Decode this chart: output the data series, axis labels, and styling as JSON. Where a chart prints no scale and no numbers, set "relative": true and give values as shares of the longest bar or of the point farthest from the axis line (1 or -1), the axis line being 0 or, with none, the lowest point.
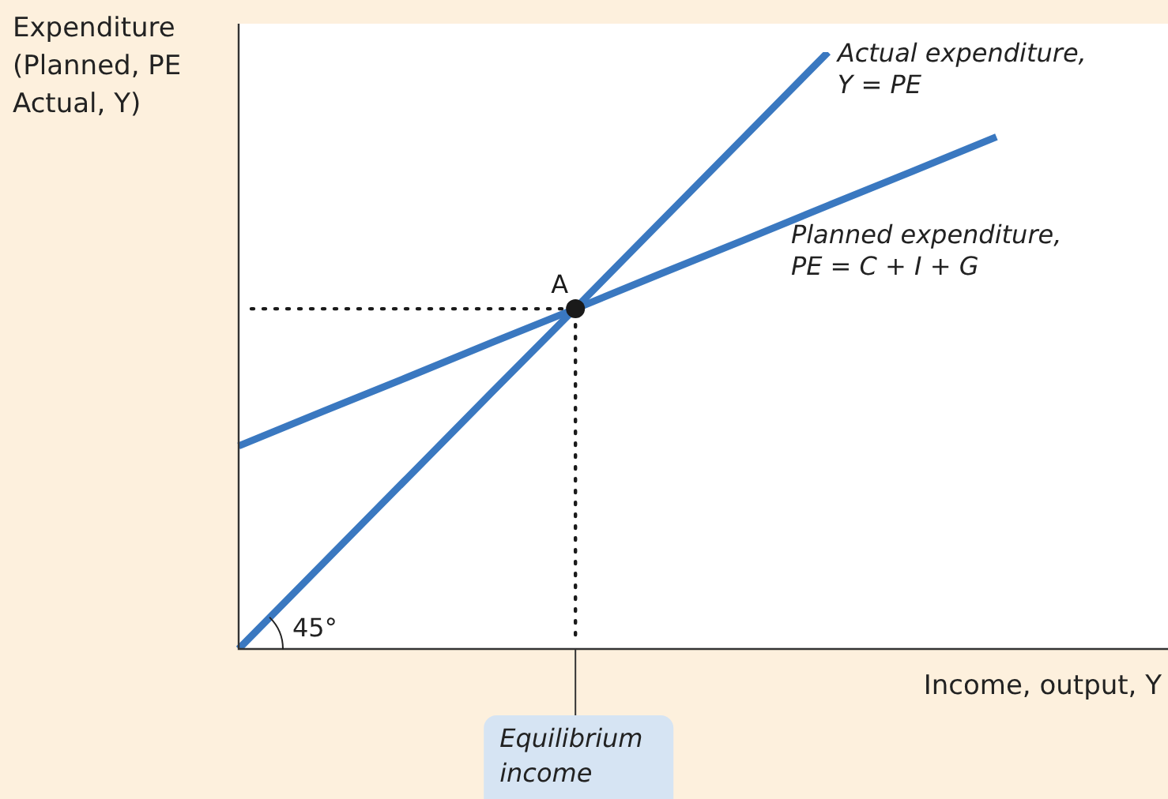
{
  "chart_data": {
    "type": "line",
    "relative": true,
    "tick_labels": false,
    "legend": false,
    "marker": "none",
    "line_style": "solid",
    "ylabel": "Expenditure\n(Planned, PE\nActual, Y)",
    "xlabel": "Income, output, Y",
    "categories": [
      null,
      null,
      null,
      null,
      null,
      null,
      null,
      null,
      null,
      null,
      null,
      null
    ],
    "series": [
      {
        "name": "Actual expenditure,\nY = PE",
        "color": "#3a78c0",
        "values": [
          0,
          0.143,
          0.286,
          0.429,
          0.571,
          0.714,
          0.857,
          1,
          null,
          null,
          null,
          null
        ]
      },
      {
        "name": "Planned expenditure,\nPE = C + I + G",
        "color": "#3a78c0",
        "values": [
          0.34,
          0.398,
          0.455,
          0.513,
          0.57,
          0.628,
          0.685,
          0.743,
          0.8,
          0.858,
          null,
          null
        ]
      }
    ],
    "ref_lines": [
      {
        "axis": "y",
        "value": 0.57,
        "line_style": "dotted",
        "color": "#1a1a1a"
      }
    ],
    "annotations": [
      "45°",
      {
        "text": "A",
        "y": 0.57
      },
      "Equilibrium\nincome"
    ]
  }
}
